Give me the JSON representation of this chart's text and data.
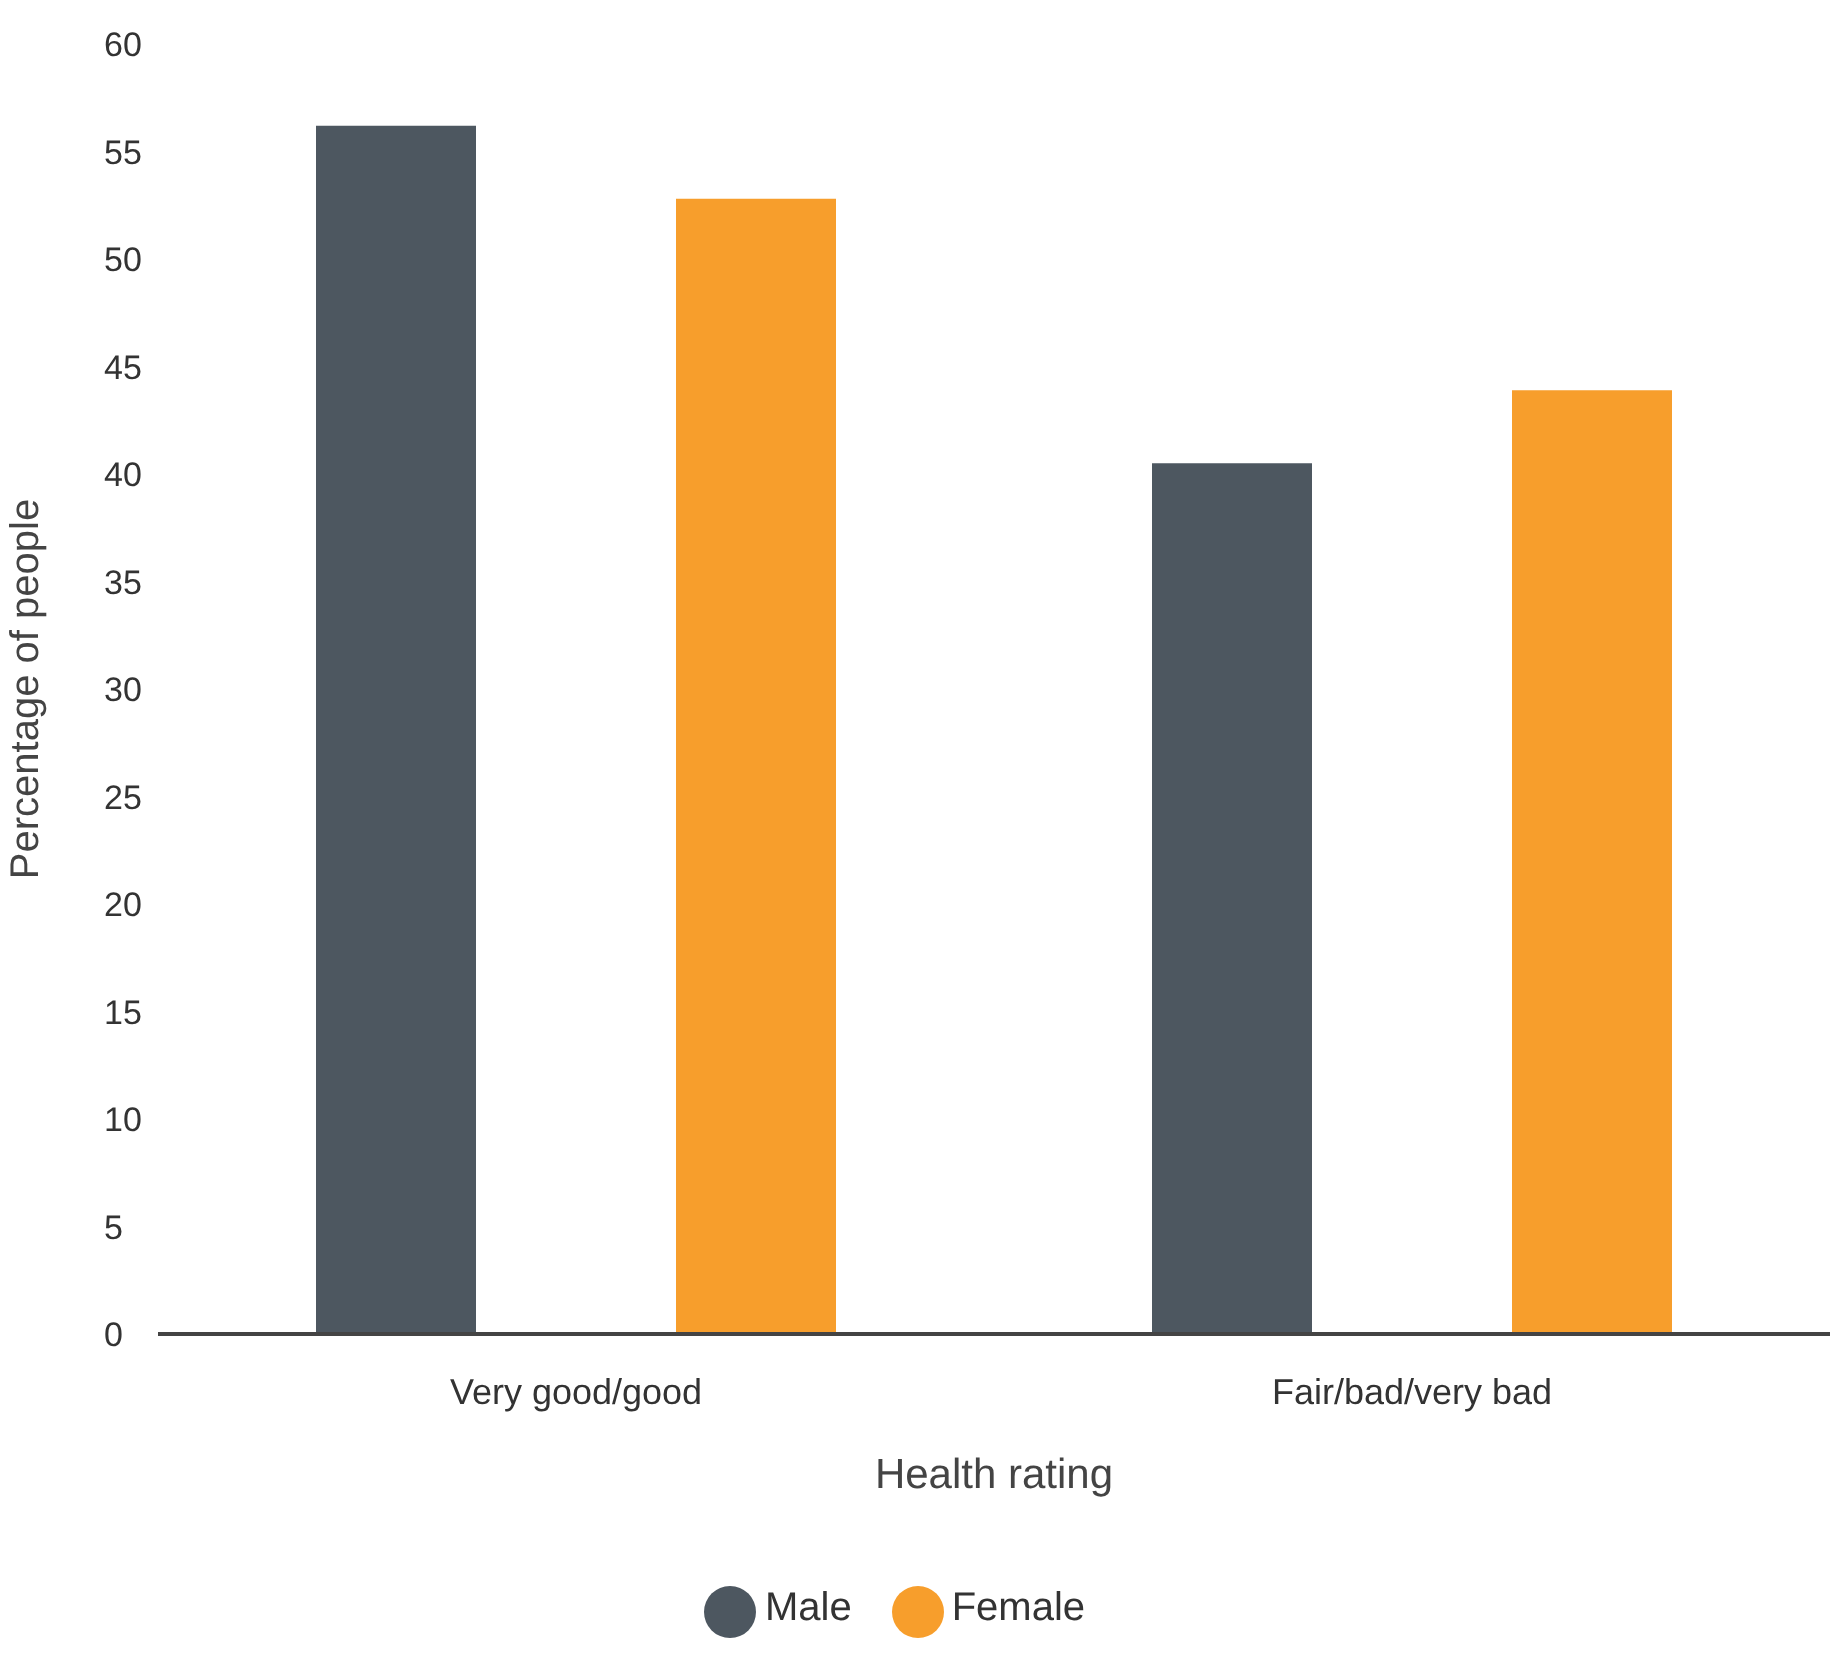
{
  "chart_data": {
    "type": "bar",
    "xlabel": "Health rating",
    "ylabel": "Percentage of people",
    "categories": [
      "Very good/good",
      "Fair/bad/very bad"
    ],
    "series": [
      {
        "name": "Male",
        "color": "#4d5760",
        "values": [
          56.2,
          40.5
        ]
      },
      {
        "name": "Female",
        "color": "#f79e2c",
        "values": [
          52.8,
          43.9
        ]
      }
    ],
    "ylim": [
      0,
      60
    ],
    "yticks": [
      0,
      5,
      10,
      15,
      20,
      25,
      30,
      35,
      40,
      45,
      50,
      55,
      60
    ],
    "grid": false,
    "legend": "bottom"
  }
}
